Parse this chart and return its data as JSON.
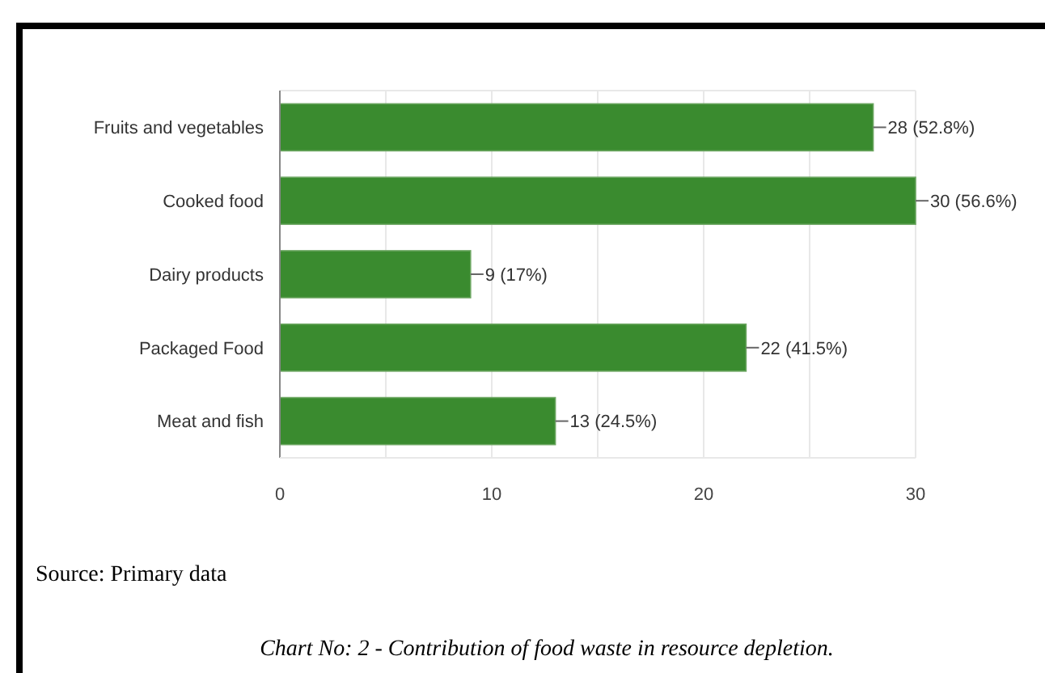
{
  "chart_data": {
    "type": "bar",
    "orientation": "horizontal",
    "categories": [
      "Fruits and vegetables",
      "Cooked food",
      "Dairy products",
      "Packaged Food",
      "Meat and fish"
    ],
    "values": [
      28,
      30,
      9,
      22,
      13
    ],
    "value_labels": [
      "28 (52.8%)",
      "30 (56.6%)",
      "9 (17%)",
      "22 (41.5%)",
      "13 (24.5%)"
    ],
    "color": "#3a8b2f",
    "xlim": [
      0,
      30
    ],
    "xticks": [
      0,
      {
        "value": 5,
        "label": null
      },
      10,
      {
        "value": 15,
        "label": null
      },
      20,
      {
        "value": 25,
        "label": null
      },
      30
    ],
    "grid": true,
    "annotations": [
      "Source: Primary data",
      "Chart No: 2 - Contribution of food waste in resource depletion."
    ]
  }
}
